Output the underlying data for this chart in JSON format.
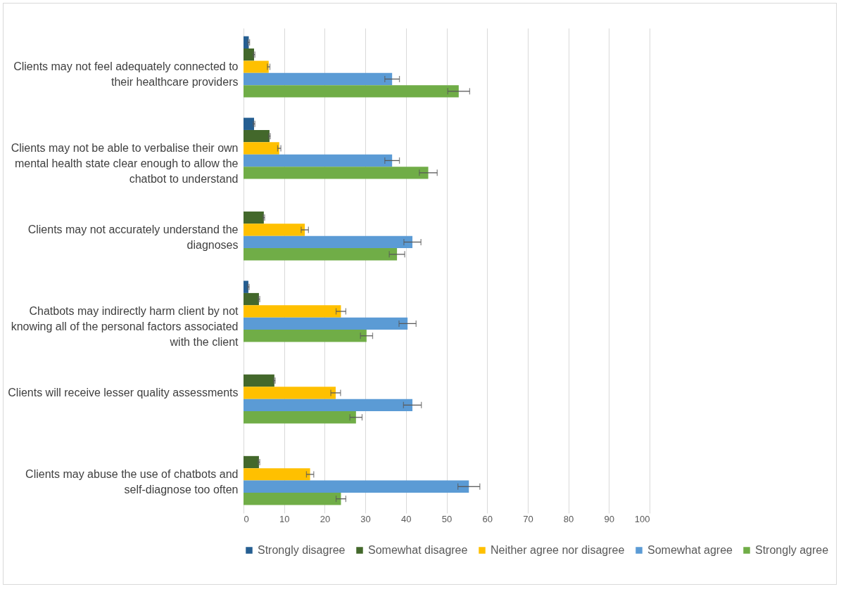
{
  "chart_data": {
    "type": "bar",
    "orientation": "horizontal",
    "categories": [
      "Clients may not feel adequately connected to their healthcare providers",
      "Clients may not be able to verbalise their own mental health state clear enough to allow the chatbot to understand",
      "Clients may not accurately understand the diagnoses",
      "Chatbots may indirectly harm client by not knowing all of the personal factors associated with the client",
      "Clients will receive lesser quality assessments",
      "Clients may abuse the use of chatbots and self-diagnose too often"
    ],
    "series": [
      {
        "name": "Strongly disagree",
        "color": "#255e91",
        "values": [
          1.3,
          2.6,
          null,
          1.2,
          null,
          null
        ],
        "errors": [
          0.2,
          0.2,
          null,
          0.2,
          null,
          null
        ]
      },
      {
        "name": "Somewhat disagree",
        "color": "#43682b",
        "values": [
          2.6,
          6.4,
          5.0,
          3.8,
          7.6,
          3.8
        ],
        "errors": [
          0.2,
          0.2,
          0.2,
          0.2,
          0.2,
          0.2
        ]
      },
      {
        "name": "Neither agree nor disagree",
        "color": "#ffc000",
        "values": [
          6.2,
          8.8,
          15.1,
          24.0,
          22.7,
          16.4
        ],
        "errors": [
          0.3,
          0.4,
          0.9,
          1.2,
          1.2,
          0.9
        ]
      },
      {
        "name": "Somewhat agree",
        "color": "#5b9bd5",
        "values": [
          36.6,
          36.6,
          41.6,
          40.4,
          41.6,
          55.5
        ],
        "errors": [
          1.8,
          1.8,
          2.1,
          2.1,
          2.2,
          2.7
        ]
      },
      {
        "name": "Strongly agree",
        "color": "#70ad47",
        "values": [
          53.0,
          45.5,
          37.8,
          30.3,
          27.7,
          24.0
        ],
        "errors": [
          2.7,
          2.2,
          1.9,
          1.5,
          1.5,
          1.2
        ]
      }
    ],
    "xlim": [
      0,
      100
    ],
    "xticks": [
      0,
      10,
      20,
      30,
      40,
      50,
      60,
      70,
      80,
      90,
      100
    ],
    "grid": "x",
    "legend": "bottom"
  }
}
